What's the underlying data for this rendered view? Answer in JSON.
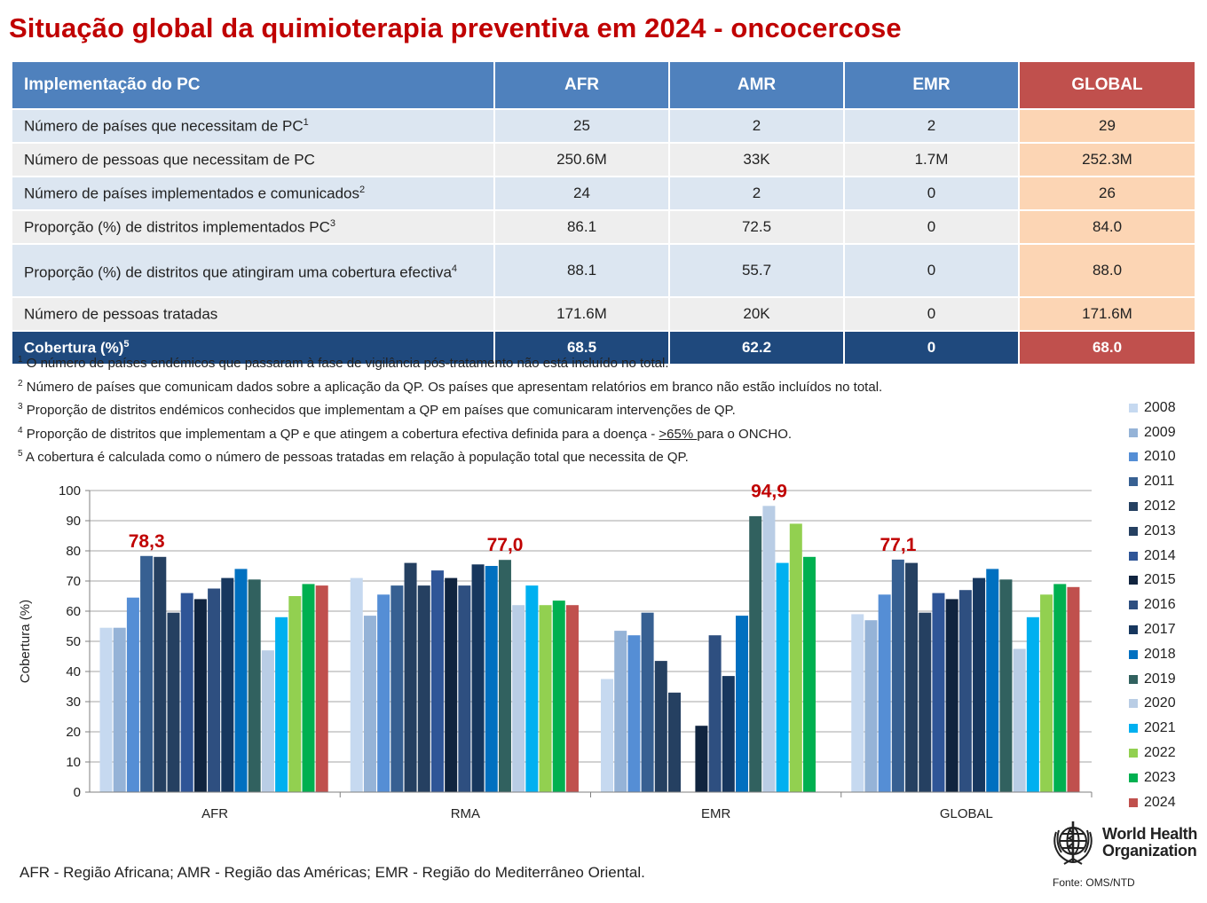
{
  "title": "Situação global da quimioterapia preventiva em 2024 - oncocercose",
  "table": {
    "headers": [
      "Implementação do PC",
      "AFR",
      "AMR",
      "EMR",
      "GLOBAL"
    ],
    "rows": [
      {
        "label": "Número de países que necessitam de PC",
        "sup": "1",
        "values": [
          "25",
          "2",
          "2",
          "29"
        ]
      },
      {
        "label": "Número de pessoas que necessitam de PC",
        "sup": "",
        "values": [
          "250.6M",
          "33K",
          "1.7M",
          "252.3M"
        ]
      },
      {
        "label": "Número de países implementados e comunicados",
        "sup": "2",
        "values": [
          "24",
          "2",
          "0",
          "26"
        ]
      },
      {
        "label": "Proporção (%) de distritos implementados PC",
        "sup": "3",
        "values": [
          "86.1",
          "72.5",
          "0",
          "84.0"
        ]
      },
      {
        "label": "Proporção (%) de distritos que atingiram uma cobertura efectiva",
        "sup": "4",
        "values": [
          "88.1",
          "55.7",
          "0",
          "88.0"
        ]
      },
      {
        "label": "Número de pessoas tratadas",
        "sup": "",
        "values": [
          "171.6M",
          "20K",
          "0",
          "171.6M"
        ]
      },
      {
        "label": "Cobertura (%)",
        "sup": "5",
        "values": [
          "68.5",
          "62.2",
          "0",
          "68.0"
        ]
      }
    ]
  },
  "footnotes": [
    {
      "num": "1",
      "text": "O número de países endémicos que passaram à fase de vigilância pós-tratamento não está incluído no total."
    },
    {
      "num": "2",
      "text": "Número de países que comunicam dados sobre a aplicação da QP. Os países que apresentam relatórios em branco não estão incluídos no total."
    },
    {
      "num": "3",
      "text": "Proporção de distritos endémicos conhecidos que implementam a QP em países que comunicaram intervenções de QP."
    },
    {
      "num": "4",
      "pre": "Proporção de distritos que implementam a QP e que atingem a cobertura efectiva definida para a doença - ",
      "underlined": ">65% ",
      "post": "para o ONCHO."
    },
    {
      "num": "5",
      "text": "A cobertura é calculada como o número de pessoas tratadas em relação à população total que necessita de QP."
    }
  ],
  "chart_data": {
    "type": "bar",
    "ylabel": "Cobertura (%)",
    "ylim": [
      0,
      100
    ],
    "yticks": [
      0,
      10,
      20,
      30,
      40,
      50,
      60,
      70,
      80,
      90,
      100
    ],
    "grid": true,
    "legend_position": "right",
    "categories": [
      "AFR",
      "RMA",
      "EMR",
      "GLOBAL"
    ],
    "series": [
      {
        "name": "2008",
        "color": "#c6d9f0",
        "values": [
          54.5,
          71,
          37.5,
          59
        ]
      },
      {
        "name": "2009",
        "color": "#95b3d7",
        "values": [
          54.5,
          58.5,
          53.5,
          57
        ]
      },
      {
        "name": "2010",
        "color": "#558ed5",
        "values": [
          64.5,
          65.5,
          52,
          65.5
        ]
      },
      {
        "name": "2011",
        "color": "#376092",
        "values": [
          78.3,
          68.5,
          59.5,
          77.1
        ]
      },
      {
        "name": "2012",
        "color": "#254061",
        "values": [
          78,
          76,
          43.5,
          76
        ]
      },
      {
        "name": "2013",
        "color": "#254061",
        "values": [
          59.5,
          68.5,
          33,
          59.5
        ]
      },
      {
        "name": "2014",
        "color": "#2f5597",
        "values": [
          66,
          73.5,
          null,
          66
        ]
      },
      {
        "name": "2015",
        "color": "#10243f",
        "values": [
          64,
          71,
          22,
          64
        ]
      },
      {
        "name": "2016",
        "color": "#2e4f80",
        "values": [
          67.5,
          68.5,
          52,
          67
        ]
      },
      {
        "name": "2017",
        "color": "#17375e",
        "values": [
          71,
          75.5,
          38.5,
          71
        ]
      },
      {
        "name": "2018",
        "color": "#0070c0",
        "values": [
          74,
          75,
          58.5,
          74
        ]
      },
      {
        "name": "2019",
        "color": "#31615f",
        "values": [
          70.5,
          77,
          91.5,
          70.5
        ]
      },
      {
        "name": "2020",
        "color": "#b9cde5",
        "values": [
          47,
          62,
          94.9,
          47.5
        ]
      },
      {
        "name": "2021",
        "color": "#00b0f0",
        "values": [
          58,
          68.5,
          76,
          58
        ]
      },
      {
        "name": "2022",
        "color": "#92d050",
        "values": [
          65,
          62,
          89,
          65.5
        ]
      },
      {
        "name": "2023",
        "color": "#00b050",
        "values": [
          69,
          63.5,
          78,
          69
        ]
      },
      {
        "name": "2024",
        "color": "#c0504d",
        "values": [
          68.5,
          62,
          null,
          68
        ]
      }
    ],
    "annotations": [
      {
        "category": "AFR",
        "text": "78,3",
        "value": 78.3
      },
      {
        "category": "RMA",
        "text": "77,0",
        "value": 77.0
      },
      {
        "category": "EMR",
        "text": "94,9",
        "value": 94.9
      },
      {
        "category": "GLOBAL",
        "text": "77,1",
        "value": 77.1
      }
    ],
    "annotation_color": "#c00000"
  },
  "abbreviations": "AFR - Região Africana; AMR - Região das Américas; EMR - Região do Mediterrâneo Oriental.",
  "logo": {
    "line1": "World Health",
    "line2": "Organization"
  },
  "source": "Fonte: OMS/NTD"
}
